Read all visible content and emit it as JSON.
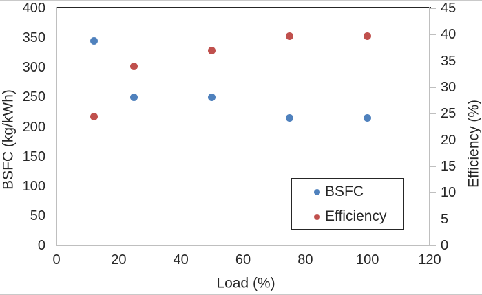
{
  "chart_data": {
    "type": "scatter",
    "title": "",
    "xlabel": "Load (%)",
    "ylabel_left": "BSFC (kg/kWh)",
    "ylabel_right": "Efficiency (%)",
    "xlim": [
      0,
      120
    ],
    "xticks": [
      0,
      20,
      40,
      60,
      80,
      100,
      120
    ],
    "ylim_left": [
      0,
      400
    ],
    "yticks_left": [
      400,
      350,
      300,
      250,
      200,
      150,
      100,
      50,
      0
    ],
    "ylim_right": [
      0,
      45
    ],
    "yticks_right": [
      45,
      40,
      35,
      30,
      25,
      20,
      15,
      10,
      5,
      0
    ],
    "grid": false,
    "x": [
      12,
      25,
      50,
      75,
      100
    ],
    "series": [
      {
        "name": "BSFC",
        "axis": "left",
        "color": "#4F81BD",
        "values": [
          345,
          250,
          250,
          215,
          215
        ]
      },
      {
        "name": "Efficiency",
        "axis": "right",
        "color": "#C0504D",
        "values": [
          24.5,
          34,
          37,
          39.7,
          39.7
        ]
      }
    ],
    "legend": {
      "position": "inside-bottom-right",
      "entries": [
        "BSFC",
        "Efficiency"
      ]
    }
  },
  "colors": {
    "background": "#ffffff",
    "spine_dark": "#262626",
    "spine_gray": "#BFBFBF",
    "text": "#262626",
    "series_bsfc": "#4F81BD",
    "series_efficiency": "#C0504D"
  }
}
